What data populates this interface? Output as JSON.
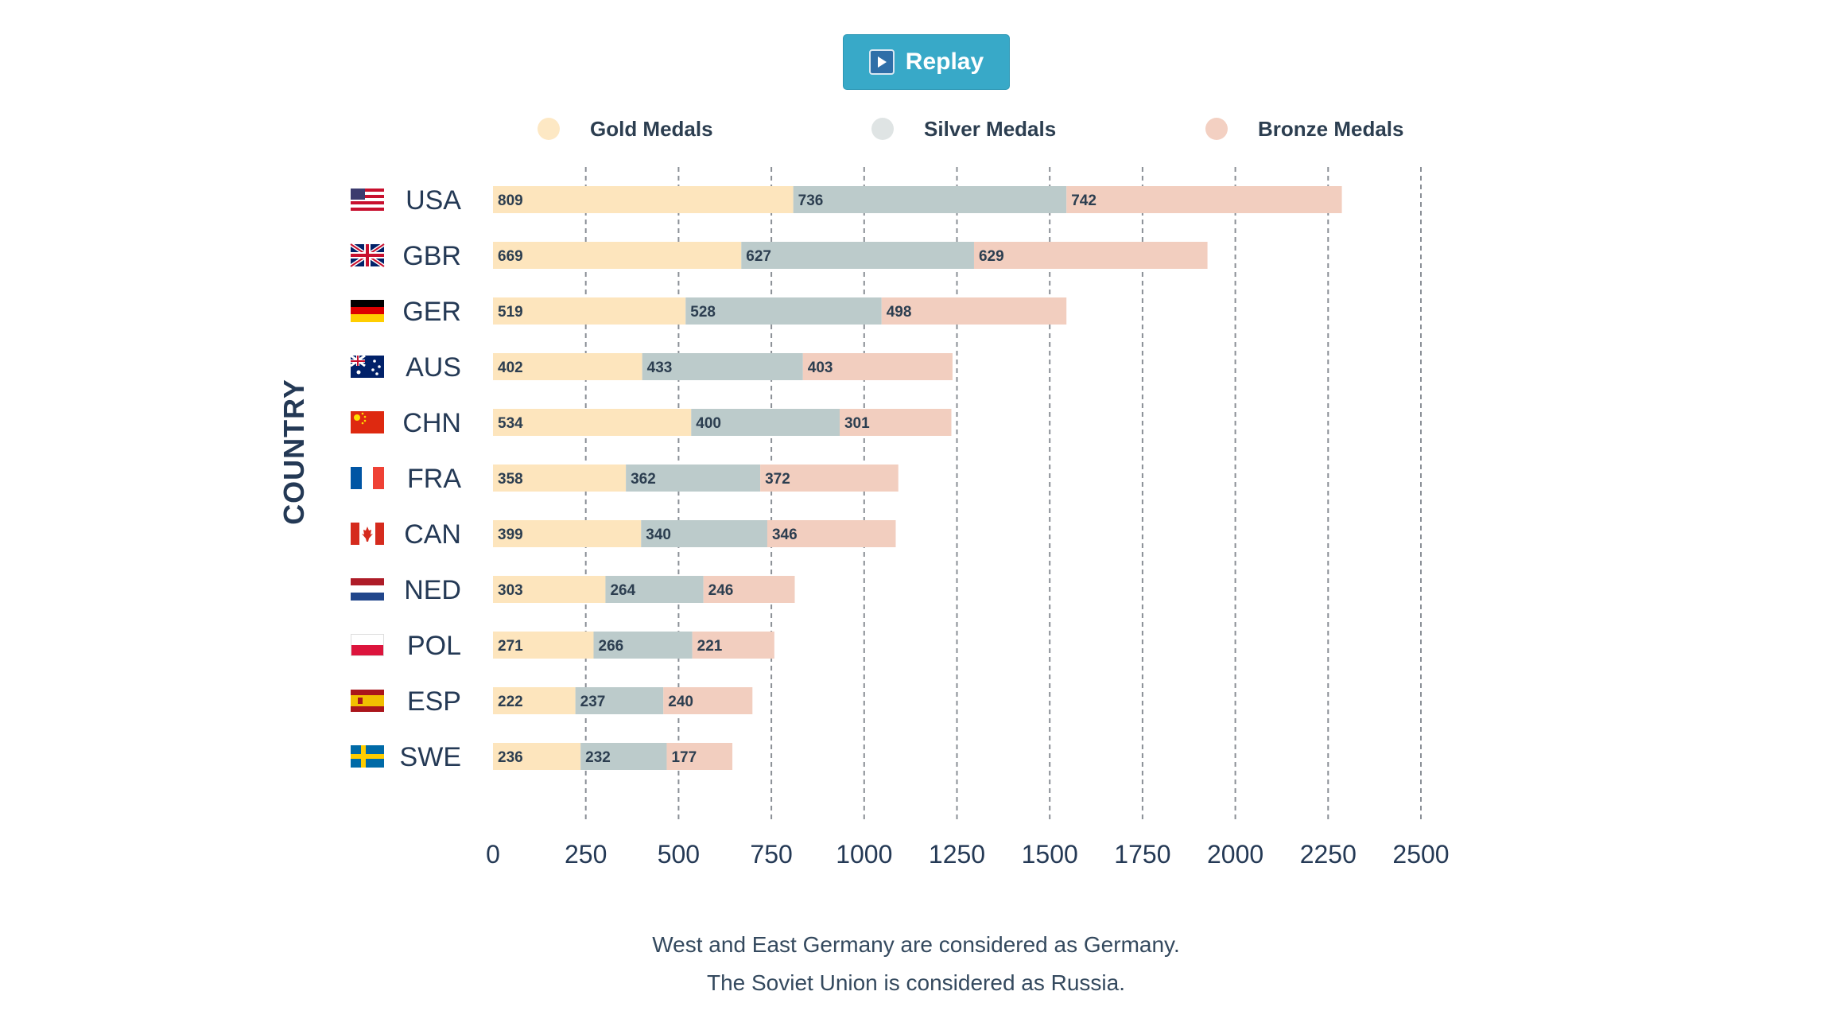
{
  "replay": {
    "label": "Replay",
    "icon": "play-icon"
  },
  "notes": {
    "line1": "West and East Germany are considered as Germany.",
    "line2": "The Soviet Union is considered as Russia."
  },
  "chart_data": {
    "type": "bar",
    "orientation": "horizontal",
    "stacked": true,
    "ylabel": "COUNTRY",
    "xlabel": "",
    "xlim": [
      0,
      2500
    ],
    "xticks": [
      0,
      250,
      500,
      750,
      1000,
      1250,
      1500,
      1750,
      2000,
      2250,
      2500
    ],
    "grid": true,
    "legend_position": "top",
    "categories": [
      "USA",
      "GBR",
      "GER",
      "AUS",
      "CHN",
      "FRA",
      "CAN",
      "NED",
      "POL",
      "ESP",
      "SWE"
    ],
    "flags": [
      "flag-usa-icon",
      "flag-gbr-icon",
      "flag-ger-icon",
      "flag-aus-icon",
      "flag-chn-icon",
      "flag-fra-icon",
      "flag-can-icon",
      "flag-ned-icon",
      "flag-pol-icon",
      "flag-esp-icon",
      "flag-swe-icon"
    ],
    "series": [
      {
        "name": "Gold Medals",
        "color": "#fde5bd",
        "values": [
          809,
          669,
          519,
          402,
          534,
          358,
          399,
          303,
          271,
          222,
          236
        ]
      },
      {
        "name": "Silver Medals",
        "color": "#bccbcb",
        "values": [
          736,
          627,
          528,
          433,
          400,
          362,
          340,
          264,
          266,
          237,
          232
        ]
      },
      {
        "name": "Bronze Medals",
        "color": "#f2cebf",
        "values": [
          742,
          629,
          498,
          403,
          301,
          372,
          346,
          246,
          221,
          240,
          177
        ]
      }
    ],
    "legend_marker_colors": [
      "#fde8c4",
      "#dfe4e4",
      "#f3d0c2"
    ]
  }
}
